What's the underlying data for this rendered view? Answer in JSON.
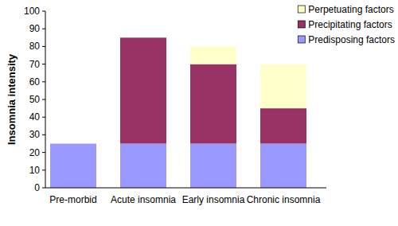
{
  "chart_data": {
    "type": "bar",
    "stacked": true,
    "y_label": "Insomnia intensity",
    "categories": [
      "Pre-morbid",
      "Acute insomnia",
      "Early insomnia",
      "Chronic insomnia"
    ],
    "series": [
      {
        "name": "Predisposing factors",
        "color": "#9999ff",
        "values": [
          25,
          25,
          25,
          25
        ]
      },
      {
        "name": "Precipitating factors",
        "color": "#993366",
        "values": [
          0,
          60,
          45,
          20
        ]
      },
      {
        "name": "Perpetuating factors",
        "color": "#ffffcc",
        "values": [
          0,
          0,
          10,
          25
        ]
      }
    ],
    "ylim": [
      0,
      100
    ],
    "yticks": [
      0,
      10,
      20,
      30,
      40,
      50,
      60,
      70,
      80,
      90,
      100
    ],
    "grid": false,
    "legend": "top-right"
  }
}
